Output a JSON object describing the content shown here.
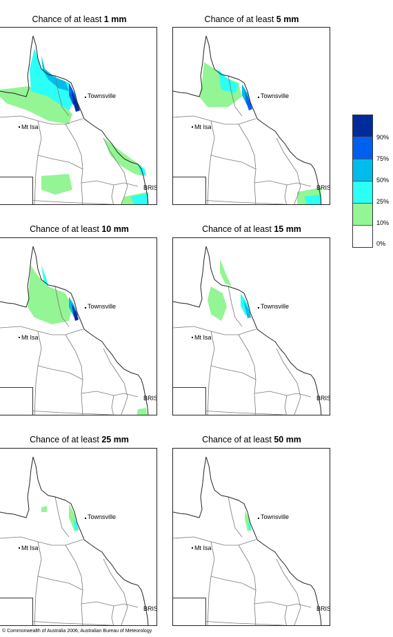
{
  "panels": [
    {
      "title_prefix": "Chance of at least ",
      "amount": "1 mm"
    },
    {
      "title_prefix": "Chance of at least ",
      "amount": "5 mm"
    },
    {
      "title_prefix": "Chance of at least ",
      "amount": "10 mm"
    },
    {
      "title_prefix": "Chance of at least ",
      "amount": "15 mm"
    },
    {
      "title_prefix": "Chance of at least ",
      "amount": "25 mm"
    },
    {
      "title_prefix": "Chance of at least ",
      "amount": "50 mm"
    }
  ],
  "places": {
    "townsville": "Townsville",
    "mtisa": "Mt Isa",
    "bris": "BRIS"
  },
  "legend": {
    "colors": [
      "#002b9c",
      "#0060ee",
      "#00bcea",
      "#2bfff6",
      "#93f593",
      "#ffffff"
    ],
    "ticks": [
      "90%",
      "75%",
      "50%",
      "25%",
      "10%",
      "0%"
    ]
  },
  "copyright": "© Commonwealth of Australia 2006, Australian Bureau of Meteorology"
}
